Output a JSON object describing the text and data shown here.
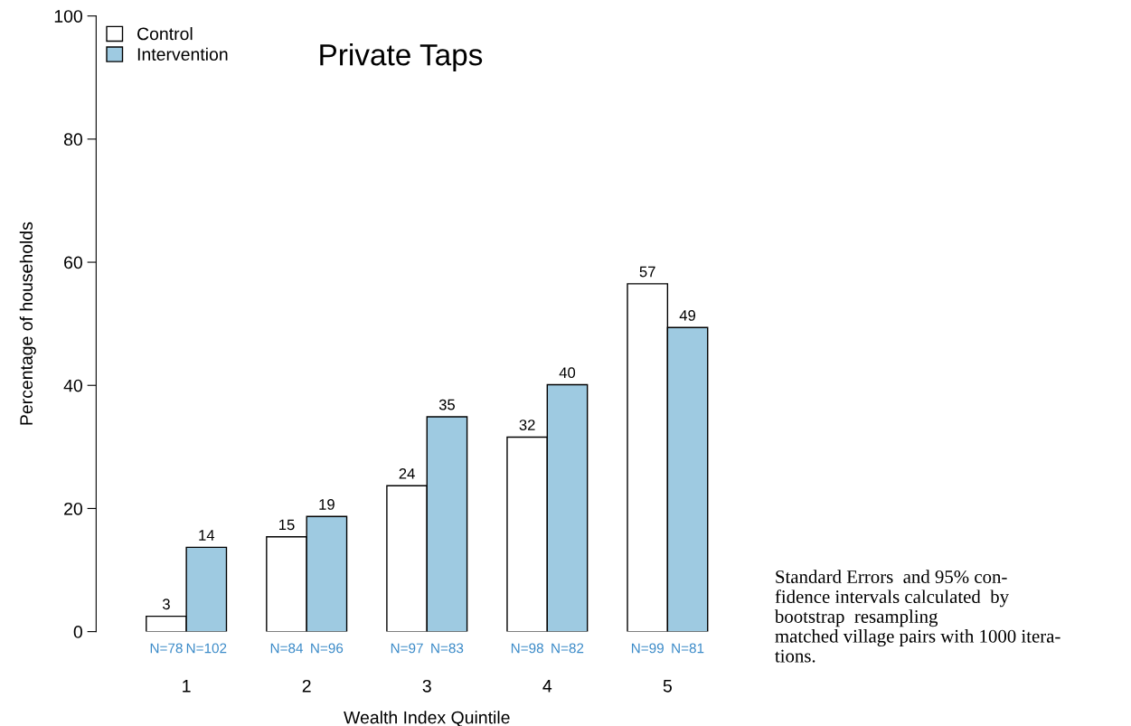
{
  "chart_data": {
    "type": "bar",
    "title": "Private Taps",
    "xlabel": "Wealth Index Quintile",
    "ylabel": "Percentage of households",
    "categories": [
      "1",
      "2",
      "3",
      "4",
      "5"
    ],
    "series": [
      {
        "name": "Control",
        "color": "#ffffff",
        "values": [
          2.5,
          15.4,
          23.7,
          31.6,
          56.5
        ],
        "value_labels": [
          "3",
          "15",
          "24",
          "32",
          "57"
        ]
      },
      {
        "name": "Intervention",
        "color": "#9ecae1",
        "values": [
          13.7,
          18.7,
          34.9,
          40.1,
          49.4
        ],
        "value_labels": [
          "14",
          "19",
          "35",
          "40",
          "49"
        ]
      }
    ],
    "ylim": [
      0,
      100
    ],
    "yticks": [
      0,
      20,
      40,
      60,
      80,
      100
    ],
    "grid": false,
    "legend": "top left",
    "annotations": [
      {
        "text": "N=78",
        "x": "1",
        "y": 0
      },
      {
        "text": "N=102",
        "x": "1",
        "y": 0
      },
      {
        "text": "N=84",
        "x": "2",
        "y": 0
      },
      {
        "text": "N=96",
        "x": "2",
        "y": 0
      },
      {
        "text": "N=97",
        "x": "3",
        "y": 0
      },
      {
        "text": "N=83",
        "x": "3",
        "y": 0
      },
      {
        "text": "N=98",
        "x": "4",
        "y": 0
      },
      {
        "text": "N=82",
        "x": "4",
        "y": 0
      },
      {
        "text": "N=99",
        "x": "5",
        "y": 0
      },
      {
        "text": "N=81",
        "x": "5",
        "y": 0
      },
      "Standard Errors  and 95% con-\nfidence intervals calculated  by\nbootstrap  resampling\nmatched village pairs with 1000 itera-\ntions."
    ]
  }
}
